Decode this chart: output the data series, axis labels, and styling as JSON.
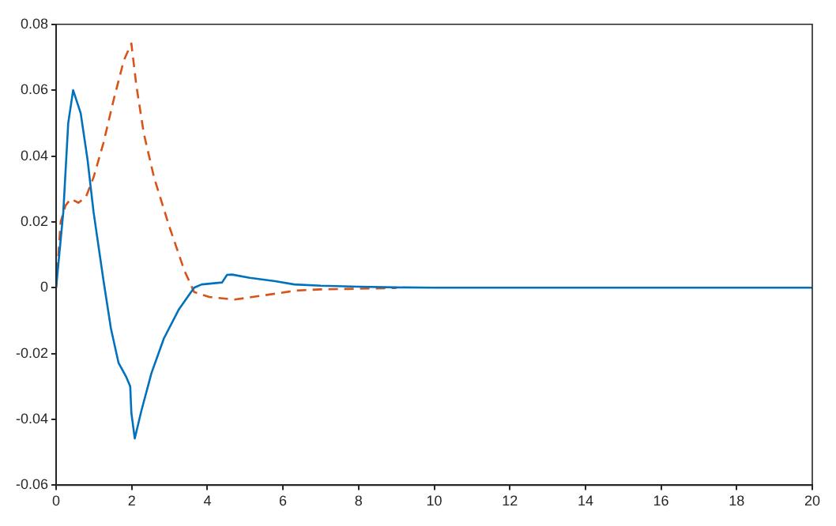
{
  "chart_data": {
    "type": "line",
    "xlim": [
      0,
      20
    ],
    "ylim": [
      -0.06,
      0.08
    ],
    "xticks": [
      0,
      2,
      4,
      6,
      8,
      10,
      12,
      14,
      16,
      18,
      20
    ],
    "yticks": [
      -0.06,
      -0.04,
      -0.02,
      0,
      0.02,
      0.04,
      0.06,
      0.08
    ],
    "grid": false,
    "legend": false,
    "marker": "none",
    "series": [
      {
        "color": "#0072bd",
        "line_style": "solid",
        "x": [
          0,
          0.19,
          0.32,
          0.45,
          0.65,
          0.83,
          0.99,
          1.25,
          1.45,
          1.65,
          1.85,
          1.96,
          1.99,
          2.08,
          2.25,
          2.52,
          2.85,
          3.25,
          3.65,
          3.85,
          4.39,
          4.52,
          4.65,
          5.12,
          5.79,
          6.3,
          7,
          8,
          9,
          10,
          12,
          14,
          16,
          18,
          20
        ],
        "values": [
          0,
          0.023,
          0.05,
          0.06,
          0.053,
          0.039,
          0.023,
          0.0024,
          -0.0124,
          -0.0228,
          -0.027,
          -0.03,
          -0.038,
          -0.0458,
          -0.0376,
          -0.026,
          -0.0154,
          -0.0065,
          0,
          0.001,
          0.0016,
          0.0039,
          0.004,
          0.003,
          0.002,
          0.001,
          0.0006,
          0.0003,
          0.0001,
          0,
          0,
          0,
          0,
          0,
          0
        ]
      },
      {
        "color": "#d95319",
        "line_style": "dashed",
        "x": [
          0,
          0.12,
          0.25,
          0.39,
          0.59,
          0.79,
          0.99,
          1.25,
          1.52,
          1.79,
          1.99,
          2.12,
          2.32,
          2.59,
          2.99,
          3.39,
          3.65,
          4.05,
          4.72,
          5.39,
          6.32,
          7,
          8,
          9
        ],
        "values": [
          0,
          0.02,
          0.025,
          0.027,
          0.0258,
          0.0276,
          0.0335,
          0.0439,
          0.057,
          0.069,
          0.0742,
          0.0616,
          0.0468,
          0.0335,
          0.0187,
          0.0053,
          -0.0013,
          -0.0028,
          -0.0036,
          -0.0025,
          -0.0009,
          -0.0005,
          -0.0003,
          -0.0001
        ]
      }
    ]
  }
}
